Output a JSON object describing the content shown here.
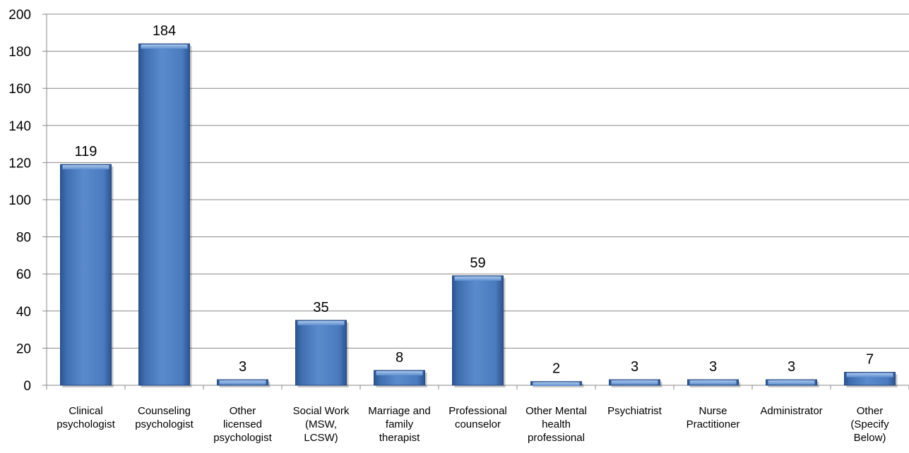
{
  "chart_data": {
    "type": "bar",
    "categories": [
      [
        "Clinical",
        "psychologist"
      ],
      [
        "Counseling",
        "psychologist"
      ],
      [
        "Other",
        "licensed",
        "psychologist"
      ],
      [
        "Social Work",
        "(MSW,",
        "LCSW)"
      ],
      [
        "Marriage and",
        "family",
        "therapist"
      ],
      [
        "Professional",
        "counselor"
      ],
      [
        "Other Mental",
        "health",
        "professional"
      ],
      [
        "Psychiatrist"
      ],
      [
        "Nurse",
        "Practitioner"
      ],
      [
        "Administrator"
      ],
      [
        "Other",
        "(Specify",
        "Below)"
      ]
    ],
    "values": [
      119,
      184,
      3,
      35,
      8,
      59,
      2,
      3,
      3,
      3,
      7
    ],
    "data_labels": [
      "119",
      "184",
      "3",
      "35",
      "8",
      "59",
      "2",
      "3",
      "3",
      "3",
      "7"
    ],
    "title": "",
    "xlabel": "",
    "ylabel": "",
    "ylim": [
      0,
      200
    ],
    "yticks": [
      0,
      20,
      40,
      60,
      80,
      100,
      120,
      140,
      160,
      180,
      200
    ],
    "grid": true,
    "legend": "none",
    "colors": {
      "bar": "#4f81bd",
      "bar_light": "#8db3e2",
      "bar_dark": "#2c5491",
      "grid": "#888888"
    }
  }
}
